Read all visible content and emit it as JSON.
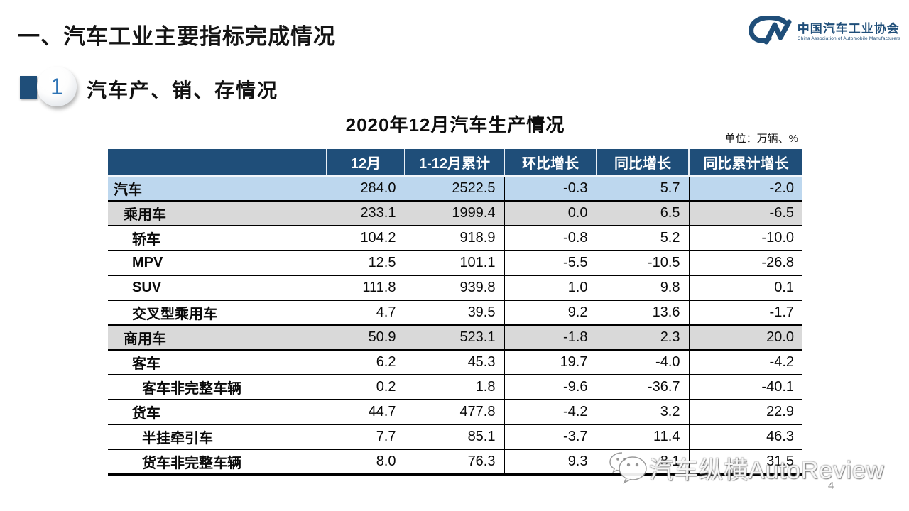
{
  "header": {
    "title": "一、汽车工业主要指标完成情况"
  },
  "logo": {
    "mark": "CM",
    "name_cn": "中国汽车工业协会",
    "name_en": "China Association of Automobile Manufacturers",
    "color": "#1f4e79"
  },
  "section": {
    "number": "1",
    "title": "汽车产、销、存情况"
  },
  "table_title": "2020年12月汽车生产情况",
  "unit_note": "单位：万辆、%",
  "table": {
    "columns": [
      "",
      "12月",
      "1-12月累计",
      "环比增长",
      "同比增长",
      "同比累计增长"
    ],
    "rows": [
      {
        "label": "汽车",
        "indent": 0,
        "style": "blue",
        "values": [
          "284.0",
          "2522.5",
          "-0.3",
          "5.7",
          "-2.0"
        ]
      },
      {
        "label": "乘用车",
        "indent": 1,
        "style": "gray",
        "values": [
          "233.1",
          "1999.4",
          "0.0",
          "6.5",
          "-6.5"
        ]
      },
      {
        "label": "轿车",
        "indent": 2,
        "style": "white",
        "values": [
          "104.2",
          "918.9",
          "-0.8",
          "5.2",
          "-10.0"
        ]
      },
      {
        "label": "MPV",
        "indent": 2,
        "style": "white",
        "values": [
          "12.5",
          "101.1",
          "-5.5",
          "-10.5",
          "-26.8"
        ]
      },
      {
        "label": "SUV",
        "indent": 2,
        "style": "white",
        "values": [
          "111.8",
          "939.8",
          "1.0",
          "9.8",
          "0.1"
        ]
      },
      {
        "label": "交叉型乘用车",
        "indent": 2,
        "style": "white",
        "values": [
          "4.7",
          "39.5",
          "9.2",
          "13.6",
          "-1.7"
        ]
      },
      {
        "label": "商用车",
        "indent": 1,
        "style": "gray",
        "values": [
          "50.9",
          "523.1",
          "-1.8",
          "2.3",
          "20.0"
        ]
      },
      {
        "label": "客车",
        "indent": 2,
        "style": "white",
        "values": [
          "6.2",
          "45.3",
          "19.7",
          "-4.0",
          "-4.2"
        ]
      },
      {
        "label": "客车非完整车辆",
        "indent": 3,
        "style": "white",
        "values": [
          "0.2",
          "1.8",
          "-9.6",
          "-36.7",
          "-40.1"
        ]
      },
      {
        "label": "货车",
        "indent": 2,
        "style": "white",
        "values": [
          "44.7",
          "477.8",
          "-4.2",
          "3.2",
          "22.9"
        ]
      },
      {
        "label": "半挂牵引车",
        "indent": 3,
        "style": "white",
        "values": [
          "7.7",
          "85.1",
          "-3.7",
          "11.4",
          "46.3"
        ]
      },
      {
        "label": "货车非完整车辆",
        "indent": 3,
        "style": "white",
        "values": [
          "8.0",
          "76.3",
          "9.3",
          "8.1",
          "31.5"
        ]
      }
    ]
  },
  "watermark": {
    "text": "汽车纵横AutoReview",
    "icon": "wechat-emoji-icon"
  },
  "page": {
    "number": "4"
  },
  "colors": {
    "header_navy": "#1f4e79",
    "row_blue": "#bdd7ee",
    "row_gray": "#d9d9d9",
    "badge_number_blue": "#2e74b5"
  }
}
